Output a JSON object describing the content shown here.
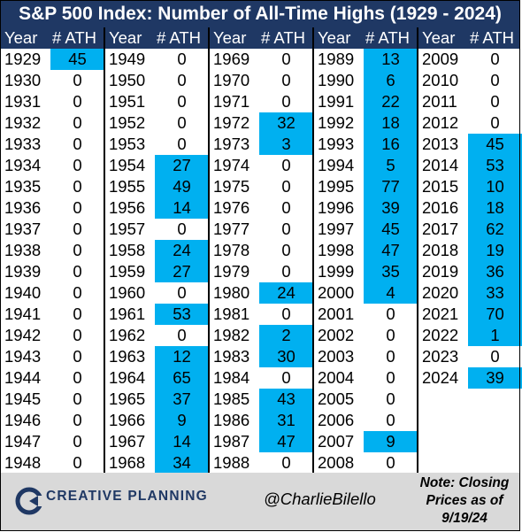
{
  "title": "S&P 500 Index: Number of All-Time Highs (1929 - 2024)",
  "headers": {
    "year": "Year",
    "ath": "# ATH"
  },
  "colors": {
    "header_bg": "#1f3864",
    "highlight": "#00b0f0",
    "footer_bg": "#d9d9d9"
  },
  "chart_data": {
    "type": "table",
    "title": "S&P 500 Index: Number of All-Time Highs (1929 - 2024)",
    "columns": [
      "Year",
      "# ATH"
    ],
    "columns_data": [
      {
        "years": [
          "1929",
          "1930",
          "1931",
          "1932",
          "1933",
          "1934",
          "1935",
          "1936",
          "1937",
          "1938",
          "1939",
          "1940",
          "1941",
          "1942",
          "1943",
          "1944",
          "1945",
          "1946",
          "1947",
          "1948"
        ],
        "values": [
          45,
          0,
          0,
          0,
          0,
          0,
          0,
          0,
          0,
          0,
          0,
          0,
          0,
          0,
          0,
          0,
          0,
          0,
          0,
          0
        ]
      },
      {
        "years": [
          "1949",
          "1950",
          "1951",
          "1952",
          "1953",
          "1954",
          "1955",
          "1956",
          "1957",
          "1958",
          "1959",
          "1960",
          "1961",
          "1962",
          "1963",
          "1964",
          "1965",
          "1966",
          "1967",
          "1968"
        ],
        "values": [
          0,
          0,
          0,
          0,
          0,
          27,
          49,
          14,
          0,
          24,
          27,
          0,
          53,
          0,
          12,
          65,
          37,
          9,
          14,
          34
        ]
      },
      {
        "years": [
          "1969",
          "1970",
          "1971",
          "1972",
          "1973",
          "1974",
          "1975",
          "1976",
          "1977",
          "1978",
          "1979",
          "1980",
          "1981",
          "1982",
          "1983",
          "1984",
          "1985",
          "1986",
          "1987",
          "1988"
        ],
        "values": [
          0,
          0,
          0,
          32,
          3,
          0,
          0,
          0,
          0,
          0,
          0,
          24,
          0,
          2,
          30,
          0,
          43,
          31,
          47,
          0
        ]
      },
      {
        "years": [
          "1989",
          "1990",
          "1991",
          "1992",
          "1993",
          "1994",
          "1995",
          "1996",
          "1997",
          "1998",
          "1999",
          "2000",
          "2001",
          "2002",
          "2003",
          "2004",
          "2005",
          "2006",
          "2007",
          "2008"
        ],
        "values": [
          13,
          6,
          22,
          18,
          16,
          5,
          77,
          39,
          45,
          47,
          35,
          4,
          0,
          0,
          0,
          0,
          0,
          0,
          9,
          0
        ]
      },
      {
        "years": [
          "2009",
          "2010",
          "2011",
          "2012",
          "2013",
          "2014",
          "2015",
          "2016",
          "2017",
          "2018",
          "2019",
          "2020",
          "2021",
          "2022",
          "2023",
          "2024"
        ],
        "values": [
          0,
          0,
          0,
          0,
          45,
          53,
          10,
          18,
          62,
          19,
          36,
          33,
          70,
          1,
          0,
          39
        ]
      }
    ]
  },
  "footer": {
    "brand": "CREATIVE PLANNING",
    "handle": "@CharlieBilello",
    "note": "Note: Closing Prices as of 9/19/24"
  }
}
